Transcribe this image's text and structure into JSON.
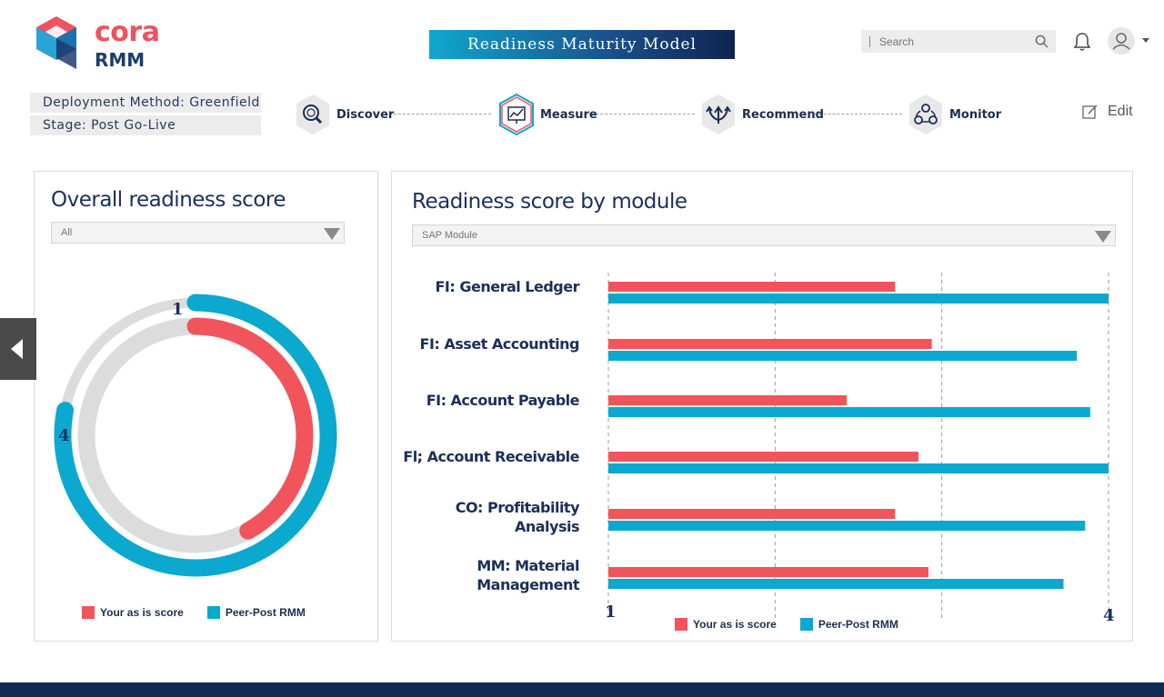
{
  "header": {
    "logo_text": "cora",
    "logo_sub": "RMM",
    "title": "Readiness Maturity Model",
    "search_placeholder": "Search"
  },
  "context": {
    "deployment": "Deployment Method: Greenfield",
    "stage": "Stage: Post Go-Live"
  },
  "steps": [
    {
      "label": "Discover",
      "icon": "magnifier-icon"
    },
    {
      "label": "Measure",
      "icon": "chart-icon"
    },
    {
      "label": "Recommend",
      "icon": "arrows-icon"
    },
    {
      "label": "Monitor",
      "icon": "network-icon"
    }
  ],
  "edit_label": "Edit",
  "overall": {
    "title": "Overall readiness score",
    "filter": "All",
    "label_start": "1",
    "label_end": "4",
    "your_score_fraction": 0.42,
    "peer_score_fraction": 0.78,
    "legend": [
      "Your as is score",
      "Peer-Post RMM"
    ]
  },
  "colors": {
    "your": "#f2545b",
    "peer": "#0ba8cf",
    "track": "#dcdcdc"
  },
  "chart_data": {
    "type": "bar",
    "title": "Readiness score by module",
    "filter": "SAP Module",
    "xlim": [
      1,
      4
    ],
    "tick_labels": [
      "1",
      "4"
    ],
    "categories": [
      [
        "FI: General Ledger"
      ],
      [
        "FI: Asset Accounting"
      ],
      [
        "FI: Account Payable"
      ],
      [
        "Fl; Account Receivable"
      ],
      [
        "CO: Profitability",
        "Analysis"
      ],
      [
        "MM: Material",
        "Management"
      ]
    ],
    "series": [
      {
        "name": "Your as is score",
        "values": [
          2.72,
          2.94,
          2.43,
          2.86,
          2.72,
          2.92
        ]
      },
      {
        "name": "Peer-Post RMM",
        "values": [
          4.0,
          3.81,
          3.89,
          4.0,
          3.86,
          3.73
        ]
      }
    ]
  }
}
